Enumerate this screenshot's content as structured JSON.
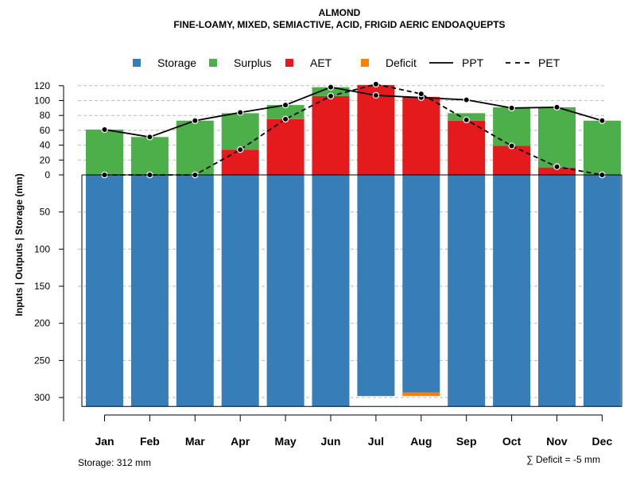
{
  "chart_data": {
    "type": "bar",
    "title": "ALMOND",
    "subtitle": "FINE-LOAMY, MIXED, SEMIACTIVE, ACID, FRIGID AERIC ENDOAQUEPTS",
    "ylabel": "Inputs | Outputs | Storage    (mm)",
    "categories": [
      "Jan",
      "Feb",
      "Mar",
      "Apr",
      "May",
      "Jun",
      "Jul",
      "Aug",
      "Sep",
      "Oct",
      "Nov",
      "Dec"
    ],
    "series": [
      {
        "name": "Storage",
        "color": "#377EB8",
        "values": [
          312,
          312,
          312,
          312,
          312,
          312,
          298,
          293,
          312,
          312,
          312,
          312
        ]
      },
      {
        "name": "Surplus",
        "color": "#4DAF4A",
        "values": [
          61,
          51,
          73,
          49,
          19,
          12,
          0,
          0,
          10,
          52,
          81,
          73
        ]
      },
      {
        "name": "AET",
        "color": "#E41A1C",
        "values": [
          0,
          0,
          0,
          34,
          75,
          106,
          121,
          105,
          73,
          39,
          10,
          0
        ]
      },
      {
        "name": "Deficit",
        "color": "#FF7F00",
        "values": [
          0,
          0,
          0,
          0,
          0,
          0,
          0,
          -5,
          0,
          0,
          0,
          0
        ]
      },
      {
        "name": "PPT",
        "style": "solid",
        "values": [
          61,
          51,
          73,
          84,
          94,
          118,
          107,
          104,
          101,
          90,
          91,
          73
        ]
      },
      {
        "name": "PET",
        "style": "dashed",
        "values": [
          0,
          0,
          0,
          34,
          75,
          106,
          122,
          109,
          74,
          39,
          11,
          0
        ]
      }
    ],
    "upper_ticks": [
      0,
      20,
      40,
      60,
      80,
      100,
      120
    ],
    "lower_ticks": [
      50,
      100,
      150,
      200,
      250,
      300
    ],
    "ylim_upper": [
      0,
      120
    ],
    "ylim_lower": [
      0,
      312
    ],
    "grid": true,
    "legend_position": "top"
  },
  "footer": {
    "storage_note": "Storage: 312 mm",
    "deficit_note": "∑ Deficit = -5 mm"
  }
}
